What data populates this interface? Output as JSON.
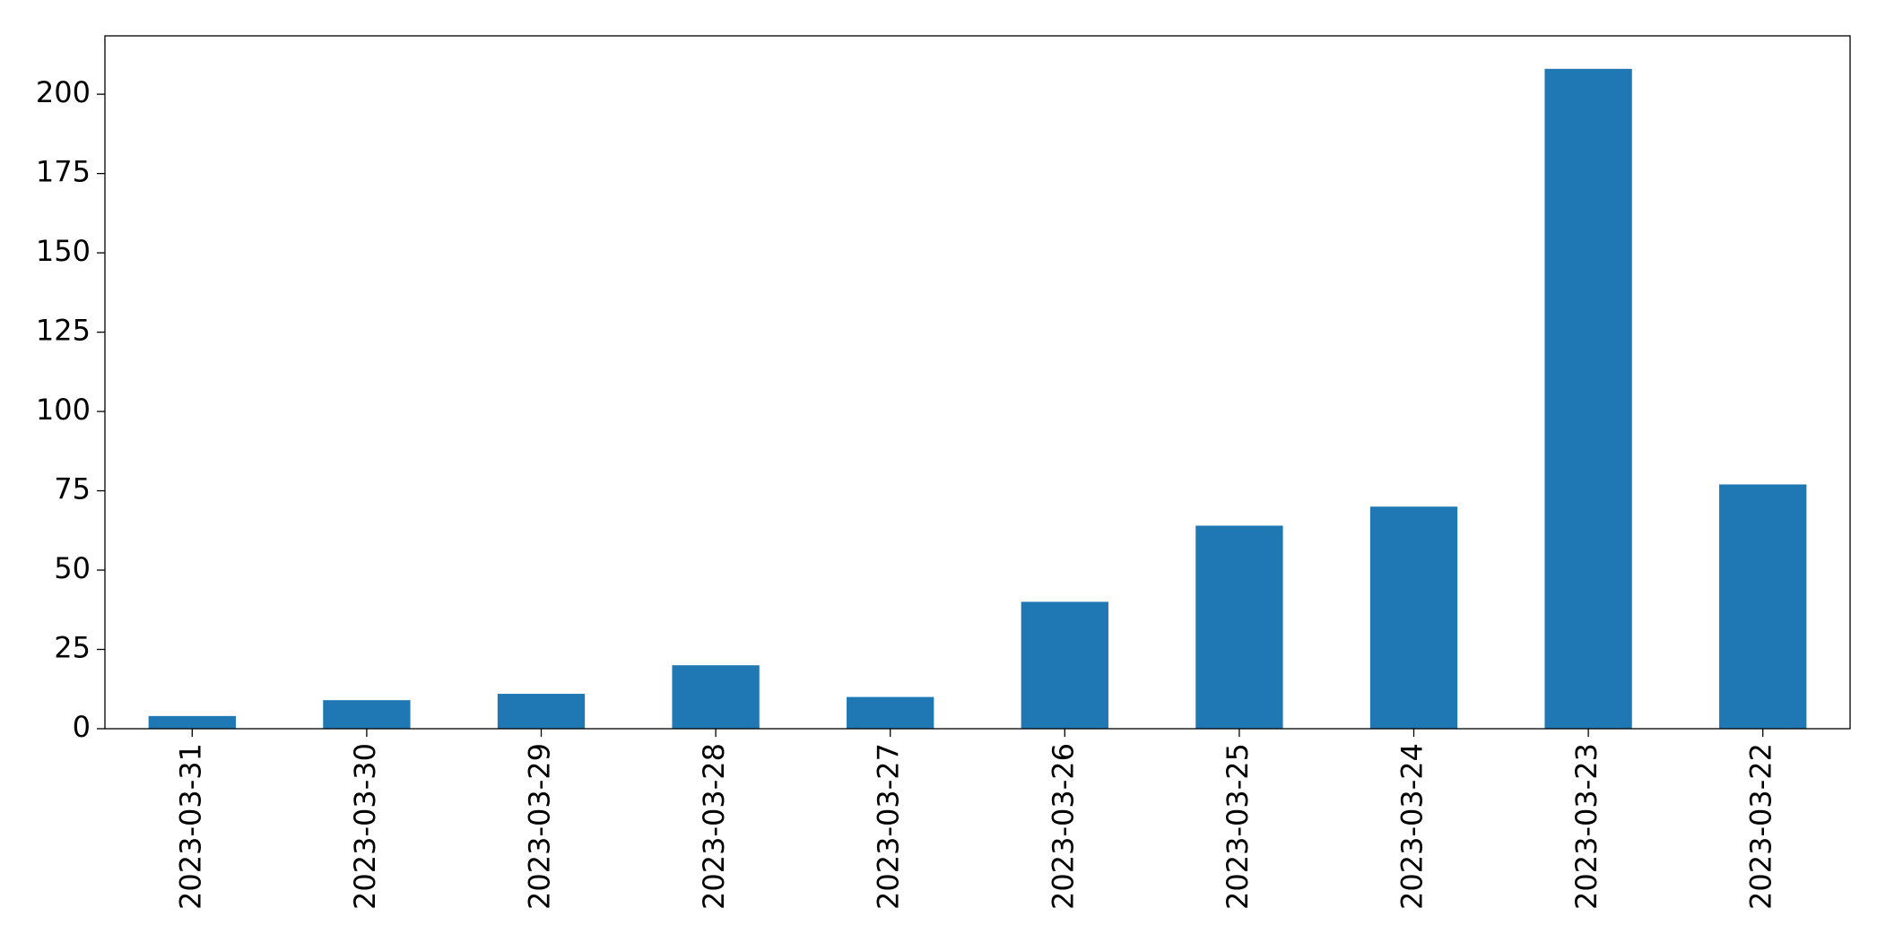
{
  "chart_data": {
    "type": "bar",
    "categories": [
      "2023-03-31",
      "2023-03-30",
      "2023-03-29",
      "2023-03-28",
      "2023-03-27",
      "2023-03-26",
      "2023-03-25",
      "2023-03-24",
      "2023-03-23",
      "2023-03-22"
    ],
    "values": [
      4,
      9,
      11,
      20,
      10,
      40,
      64,
      70,
      208,
      77
    ],
    "color": "#1f77b4",
    "ylim": [
      0,
      218.4
    ],
    "yticks": [
      0,
      25,
      50,
      75,
      100,
      125,
      150,
      175,
      200
    ],
    "grid": false
  }
}
